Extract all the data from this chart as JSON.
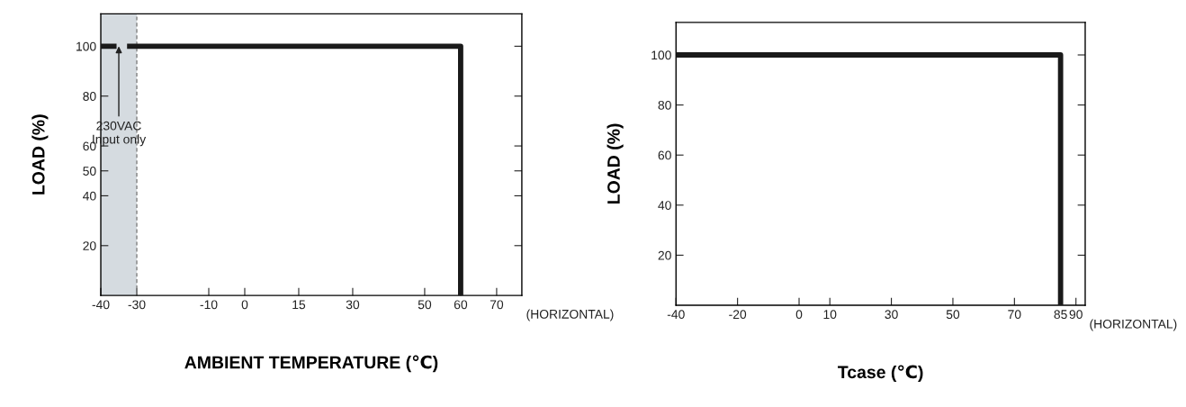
{
  "chart_data": [
    {
      "type": "line",
      "xlabel": "AMBIENT TEMPERATURE (℃)",
      "ylabel": "LOAD (%)",
      "xlim": [
        -40,
        77
      ],
      "ylim": [
        0,
        113
      ],
      "xticks": [
        -40,
        -30,
        -10,
        0,
        15,
        30,
        50,
        60,
        70
      ],
      "yticks": [
        20,
        40,
        50,
        60,
        80,
        100
      ],
      "series": [
        {
          "x": [
            -40,
            -30
          ],
          "values": [
            100,
            100
          ],
          "color": "#1a1a1a",
          "line_style": "dashed"
        },
        {
          "x": [
            -30,
            60,
            60
          ],
          "values": [
            100,
            100,
            0
          ],
          "color": "#1a1a1a",
          "line_style": "solid"
        }
      ],
      "bands": [
        {
          "axis": "x",
          "from": -40,
          "to": -30,
          "color": "#d5dbe0"
        }
      ],
      "ref_lines": [
        {
          "axis": "x",
          "value": -30,
          "color": "#808080",
          "line_style": "dashed"
        }
      ],
      "annotations": [
        {
          "text": "230VAC\nInput only",
          "x": -35,
          "y": 100
        },
        "(HORIZONTAL)"
      ]
    },
    {
      "type": "line",
      "xlabel": "Tcase (℃)",
      "ylabel": "LOAD (%)",
      "xlim": [
        -40,
        93
      ],
      "ylim": [
        0,
        113
      ],
      "xticks": [
        -40,
        -20,
        0,
        10,
        30,
        50,
        70,
        85,
        90
      ],
      "yticks": [
        20,
        40,
        60,
        80,
        100
      ],
      "series": [
        {
          "x": [
            -40,
            85,
            85
          ],
          "values": [
            100,
            100,
            0
          ],
          "color": "#1a1a1a",
          "line_style": "solid"
        }
      ],
      "annotations": [
        "(HORIZONTAL)"
      ]
    }
  ]
}
